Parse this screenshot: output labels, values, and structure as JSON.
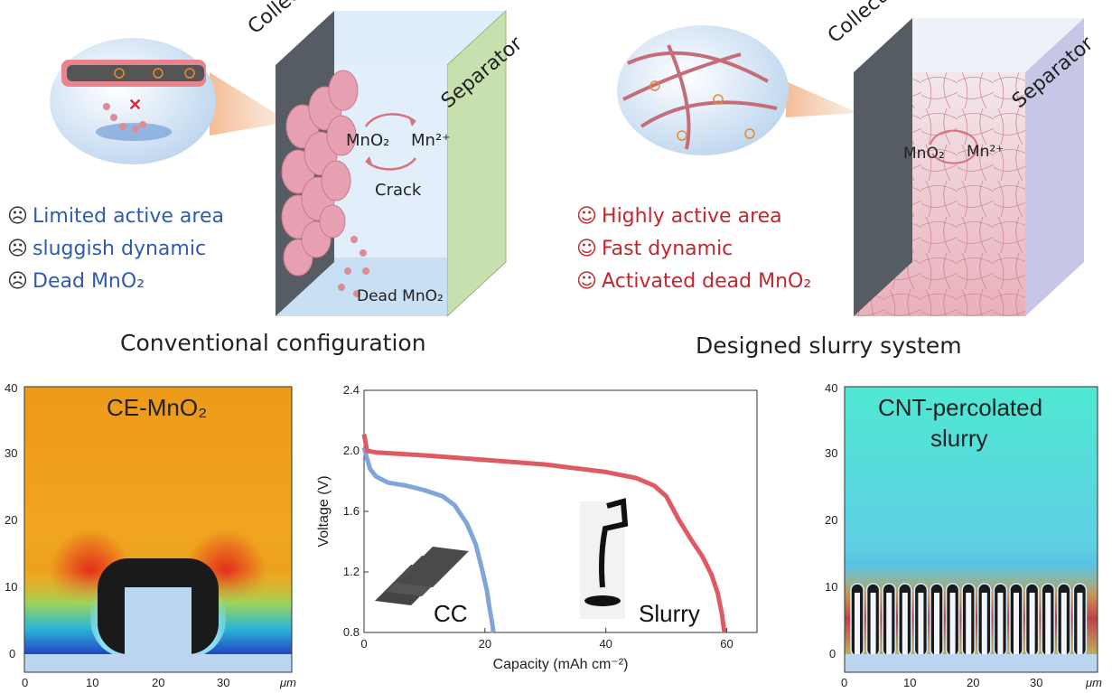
{
  "top": {
    "left": {
      "collector_label": "Collector",
      "separator_label": "Separator",
      "mno2_label": "MnO₂",
      "mn_label": "Mn²⁺",
      "crack_label": "Crack",
      "dead_label": "Dead MnO₂",
      "points": [
        "Limited active area",
        "sluggish dynamic",
        "Dead MnO₂"
      ],
      "caption": "Conventional configuration"
    },
    "right": {
      "collector_label": "Collector",
      "separator_label": "Separator",
      "mno2_label": "MnO₂",
      "mn_label": "Mn²⁺",
      "points": [
        "Highly active area",
        "Fast dynamic",
        "Activated dead MnO₂"
      ],
      "caption": "Designed slurry system"
    }
  },
  "heatmap_left": {
    "title": "CE-MnO₂",
    "unit": "μm",
    "x_ticks": [
      "0",
      "10",
      "20",
      "30"
    ],
    "y_ticks": [
      "0",
      "10",
      "20",
      "30",
      "40"
    ]
  },
  "heatmap_right": {
    "title_line1": "CNT-percolated",
    "title_line2": "slurry",
    "unit": "μm",
    "x_ticks": [
      "0",
      "10",
      "20",
      "30"
    ],
    "y_ticks": [
      "0",
      "10",
      "20",
      "30",
      "40"
    ]
  },
  "chart_data": {
    "type": "line",
    "xlabel": "Capacity (mAh cm⁻²)",
    "ylabel": "Voltage (V)",
    "xlim": [
      0,
      65
    ],
    "ylim": [
      0.8,
      2.4
    ],
    "x_ticks": [
      0,
      20,
      40,
      60
    ],
    "y_ticks": [
      0.8,
      1.2,
      1.6,
      2.0,
      2.4
    ],
    "annotations": [
      "CC",
      "Slurry"
    ],
    "colors": {
      "CC": "#7fa6d8",
      "Slurry": "#e05a63"
    },
    "series": [
      {
        "name": "CC",
        "x": [
          0,
          0.5,
          1,
          2,
          4,
          7,
          10,
          13,
          15,
          17,
          18.5,
          19.5,
          20.3,
          20.8,
          21.2,
          21.4
        ],
        "y": [
          2.02,
          1.95,
          1.88,
          1.83,
          1.79,
          1.77,
          1.74,
          1.7,
          1.64,
          1.52,
          1.38,
          1.22,
          1.08,
          0.95,
          0.86,
          0.8
        ]
      },
      {
        "name": "Slurry",
        "x": [
          0,
          0.5,
          2,
          10,
          20,
          30,
          40,
          45,
          48,
          50,
          52,
          54,
          56,
          57.5,
          58.5,
          59.2,
          59.6
        ],
        "y": [
          2.11,
          2.0,
          1.99,
          1.97,
          1.94,
          1.91,
          1.86,
          1.82,
          1.77,
          1.7,
          1.55,
          1.42,
          1.3,
          1.18,
          1.06,
          0.92,
          0.8
        ]
      }
    ]
  }
}
